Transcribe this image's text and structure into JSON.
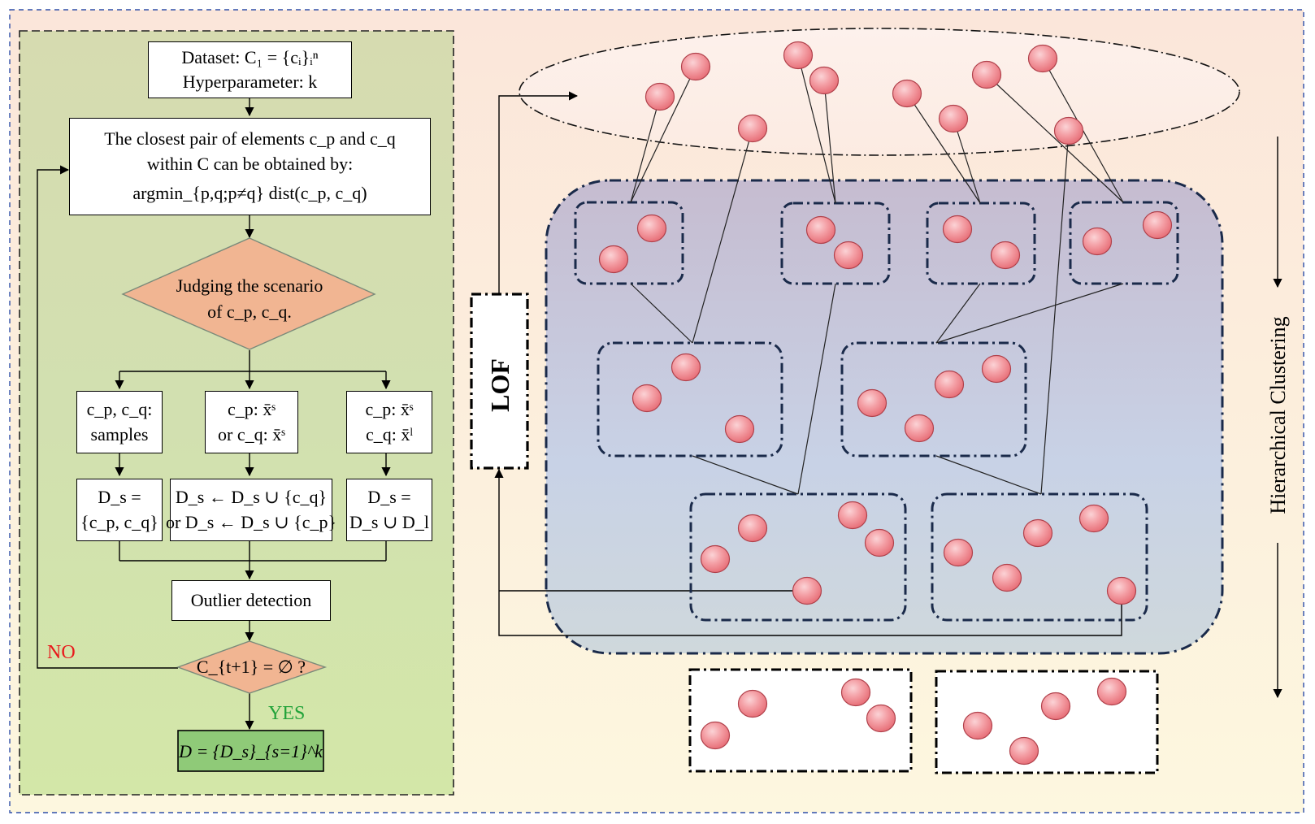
{
  "flowchart": {
    "start_box": {
      "line1": "Dataset: C₁ = {cᵢ}ᵢⁿ",
      "line2": "Hyperparameter: k"
    },
    "closest_pair_box": {
      "line1": "The closest pair of elements c_p and c_q",
      "line2": "within C can be obtained by:",
      "line3": "argmin_{p,q;p≠q} dist(c_p, c_q)"
    },
    "judge_diamond": {
      "line1": "Judging the scenario",
      "line2": "of c_p, c_q."
    },
    "scenario_boxes": [
      {
        "line1": "c_p, c_q:",
        "line2": "samples"
      },
      {
        "line1": "c_p: x̄ˢ",
        "line2": "or c_q: x̄ˢ"
      },
      {
        "line1": "c_p: x̄ˢ",
        "line2": "c_q: x̄ˡ"
      }
    ],
    "action_boxes": [
      {
        "line1": "D_s =",
        "line2": "{c_p, c_q}"
      },
      {
        "line1": "D_s ← D_s ∪ {c_q}",
        "line2": "or D_s ← D_s ∪ {c_p}"
      },
      {
        "line1": "D_s =",
        "line2": "D_s ∪ D_l"
      }
    ],
    "outlier_box": "Outlier detection",
    "check_diamond": "C_{t+1} = ∅ ?",
    "no_label": "NO",
    "yes_label": "YES",
    "result_box": "D = {D_s}_{s=1}^k"
  },
  "right_panel": {
    "lof_label": "LOF",
    "hc_label": "Hierarchical Clustering"
  },
  "colors": {
    "left_panel_bg": "#d3dcae",
    "judge_fill": "#f1b592",
    "result_fill": "#8fca78",
    "node_fill": "#f0828a",
    "no_color": "#e8191c",
    "yes_color": "#22a33a",
    "cluster_bg": "#b5bed6"
  }
}
